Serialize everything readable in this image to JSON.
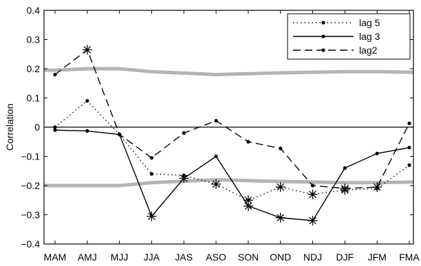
{
  "chart_data": {
    "type": "line",
    "title": "",
    "xlabel": "",
    "ylabel": "Correlation",
    "categories": [
      "MAM",
      "AMJ",
      "MJJ",
      "JJA",
      "JAS",
      "ASO",
      "SON",
      "OND",
      "NDJ",
      "DJF",
      "JFM",
      "FMA"
    ],
    "ylim": [
      -0.4,
      0.4
    ],
    "yticks": [
      -0.4,
      -0.3,
      -0.2,
      -0.1,
      0,
      0.1,
      0.2,
      0.3,
      0.4
    ],
    "ytick_labels": [
      "−0.4",
      "−0.3",
      "−0.2",
      "−0.1",
      "0",
      "0.1",
      "0.2",
      "0.3",
      "0.4"
    ],
    "grid": false,
    "legend_position": "top-right",
    "series": [
      {
        "name": "lag 5",
        "style": "dotted",
        "color": "#000000",
        "values": [
          0.0,
          0.09,
          -0.025,
          -0.16,
          -0.165,
          -0.195,
          -0.25,
          -0.205,
          -0.23,
          -0.215,
          -0.21,
          -0.13
        ],
        "significant": [
          false,
          false,
          false,
          false,
          false,
          true,
          true,
          true,
          true,
          true,
          false,
          false
        ]
      },
      {
        "name": "lag 3",
        "style": "solid",
        "color": "#000000",
        "values": [
          -0.01,
          -0.013,
          -0.025,
          -0.305,
          -0.175,
          -0.1,
          -0.27,
          -0.31,
          -0.32,
          -0.14,
          -0.09,
          -0.07
        ],
        "significant": [
          false,
          false,
          false,
          true,
          true,
          false,
          true,
          true,
          true,
          false,
          false,
          false
        ]
      },
      {
        "name": "lag2",
        "style": "dashed",
        "color": "#000000",
        "values": [
          0.18,
          0.265,
          -0.025,
          -0.105,
          -0.02,
          0.022,
          -0.05,
          -0.073,
          -0.2,
          -0.21,
          -0.205,
          0.013
        ],
        "significant": [
          false,
          true,
          false,
          false,
          false,
          false,
          false,
          false,
          false,
          true,
          true,
          false
        ]
      }
    ],
    "significance_upper": {
      "color": "#b4b4b4",
      "values": [
        0.195,
        0.2,
        0.2,
        0.19,
        0.185,
        0.18,
        0.183,
        0.186,
        0.188,
        0.19,
        0.19,
        0.188
      ]
    },
    "significance_lower": {
      "color": "#b4b4b4",
      "values": [
        -0.2,
        -0.2,
        -0.2,
        -0.19,
        -0.185,
        -0.18,
        -0.183,
        -0.186,
        -0.188,
        -0.19,
        -0.19,
        -0.188
      ]
    },
    "zero_line": 0
  }
}
